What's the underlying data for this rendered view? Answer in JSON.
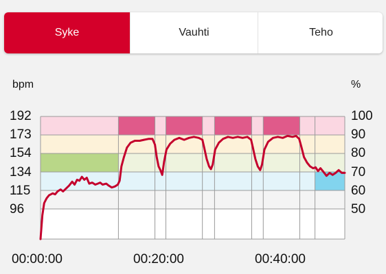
{
  "tabs": [
    {
      "label": "Syke",
      "active": true
    },
    {
      "label": "Vauhti",
      "active": false
    },
    {
      "label": "Teho",
      "active": false
    }
  ],
  "chart_data": {
    "type": "line",
    "title": "",
    "ylabel": "bpm",
    "y2label": "%",
    "x_tick_labels": [
      "00:00:00",
      "00:20:00",
      "00:40:00"
    ],
    "x_tick_values_min": [
      0,
      20,
      40
    ],
    "xlim_min": [
      0,
      50
    ],
    "y_tick_labels": [
      "192",
      "173",
      "154",
      "134",
      "115",
      "96"
    ],
    "y2_tick_labels": [
      "100",
      "90",
      "80",
      "70",
      "60",
      "50"
    ],
    "ylim": [
      67,
      192
    ],
    "zones": [
      {
        "name": "90-100%",
        "from_bpm": 173,
        "to_bpm": 192,
        "color_light": "#fbd7e2",
        "color_active": "#e05a8a"
      },
      {
        "name": "80-90%",
        "from_bpm": 154,
        "to_bpm": 173,
        "color_light": "#fdf2d9",
        "color_active": "#fdd86a"
      },
      {
        "name": "70-80%",
        "from_bpm": 134,
        "to_bpm": 154,
        "color_light": "#eef3de",
        "color_active": "#b9d788"
      },
      {
        "name": "60-70%",
        "from_bpm": 115,
        "to_bpm": 134,
        "color_light": "#e3f4fa",
        "color_active": "#82d4ee"
      },
      {
        "name": "50-60%",
        "from_bpm": 96,
        "to_bpm": 115,
        "color_light": "#f4f4f4",
        "color_active": "#d6d8d8"
      }
    ],
    "segments": [
      {
        "start_min": 0,
        "end_min": 12.8,
        "active_zone": "70-80%"
      },
      {
        "start_min": 12.8,
        "end_min": 18.8,
        "active_zone": "90-100%"
      },
      {
        "start_min": 18.8,
        "end_min": 20.6,
        "active_zone": null
      },
      {
        "start_min": 20.6,
        "end_min": 26.6,
        "active_zone": "90-100%"
      },
      {
        "start_min": 26.6,
        "end_min": 28.6,
        "active_zone": null
      },
      {
        "start_min": 28.6,
        "end_min": 34.7,
        "active_zone": "90-100%"
      },
      {
        "start_min": 34.7,
        "end_min": 36.6,
        "active_zone": null
      },
      {
        "start_min": 36.6,
        "end_min": 42.6,
        "active_zone": "90-100%"
      },
      {
        "start_min": 42.6,
        "end_min": 45.1,
        "active_zone": null
      },
      {
        "start_min": 45.1,
        "end_min": 50,
        "active_zone": "60-70%"
      }
    ],
    "series": [
      {
        "name": "",
        "color": "#c4002d",
        "points": [
          [
            0,
            67
          ],
          [
            0.3,
            90
          ],
          [
            0.6,
            102
          ],
          [
            1.0,
            107
          ],
          [
            1.4,
            110
          ],
          [
            2.0,
            112
          ],
          [
            2.4,
            111
          ],
          [
            2.8,
            114
          ],
          [
            3.3,
            116
          ],
          [
            3.7,
            114
          ],
          [
            4.2,
            117
          ],
          [
            4.7,
            120
          ],
          [
            5.2,
            124
          ],
          [
            5.6,
            121
          ],
          [
            6.0,
            126
          ],
          [
            6.4,
            125
          ],
          [
            6.8,
            129
          ],
          [
            7.2,
            126
          ],
          [
            7.6,
            128
          ],
          [
            8.0,
            122
          ],
          [
            8.5,
            123
          ],
          [
            9.0,
            121
          ],
          [
            9.4,
            122
          ],
          [
            9.8,
            123
          ],
          [
            10.2,
            121
          ],
          [
            10.8,
            122
          ],
          [
            11.2,
            120
          ],
          [
            11.7,
            118
          ],
          [
            12.2,
            119
          ],
          [
            12.7,
            121
          ],
          [
            13.0,
            125
          ],
          [
            13.3,
            140
          ],
          [
            13.7,
            150
          ],
          [
            14.2,
            160
          ],
          [
            14.8,
            165
          ],
          [
            15.5,
            167
          ],
          [
            16.3,
            167
          ],
          [
            17.0,
            168
          ],
          [
            17.8,
            169
          ],
          [
            18.4,
            169
          ],
          [
            18.8,
            163
          ],
          [
            19.1,
            150
          ],
          [
            19.4,
            140
          ],
          [
            19.7,
            136
          ],
          [
            20.0,
            131
          ],
          [
            20.3,
            145
          ],
          [
            20.7,
            158
          ],
          [
            21.3,
            164
          ],
          [
            22.0,
            168
          ],
          [
            22.8,
            170
          ],
          [
            23.6,
            168
          ],
          [
            24.4,
            170
          ],
          [
            25.2,
            171
          ],
          [
            26.0,
            170
          ],
          [
            26.6,
            168
          ],
          [
            26.9,
            160
          ],
          [
            27.3,
            148
          ],
          [
            27.7,
            140
          ],
          [
            28.0,
            137
          ],
          [
            28.3,
            142
          ],
          [
            28.7,
            158
          ],
          [
            29.3,
            165
          ],
          [
            30.0,
            169
          ],
          [
            30.8,
            171
          ],
          [
            31.6,
            170
          ],
          [
            32.4,
            171
          ],
          [
            33.2,
            170
          ],
          [
            34.0,
            171
          ],
          [
            34.6,
            168
          ],
          [
            34.9,
            160
          ],
          [
            35.3,
            148
          ],
          [
            35.7,
            140
          ],
          [
            36.1,
            136
          ],
          [
            36.4,
            142
          ],
          [
            36.8,
            158
          ],
          [
            37.4,
            166
          ],
          [
            38.2,
            170
          ],
          [
            39.0,
            171
          ],
          [
            39.8,
            170
          ],
          [
            40.6,
            172
          ],
          [
            41.4,
            171
          ],
          [
            42.0,
            172
          ],
          [
            42.5,
            169
          ],
          [
            42.9,
            160
          ],
          [
            43.3,
            150
          ],
          [
            43.8,
            144
          ],
          [
            44.3,
            140
          ],
          [
            44.8,
            138
          ],
          [
            45.2,
            139
          ],
          [
            45.6,
            135
          ],
          [
            46.0,
            138
          ],
          [
            46.5,
            134
          ],
          [
            47.0,
            130
          ],
          [
            47.5,
            133
          ],
          [
            48.0,
            131
          ],
          [
            48.5,
            133
          ],
          [
            49.0,
            136
          ],
          [
            49.5,
            133
          ],
          [
            50.0,
            133
          ]
        ]
      }
    ]
  }
}
